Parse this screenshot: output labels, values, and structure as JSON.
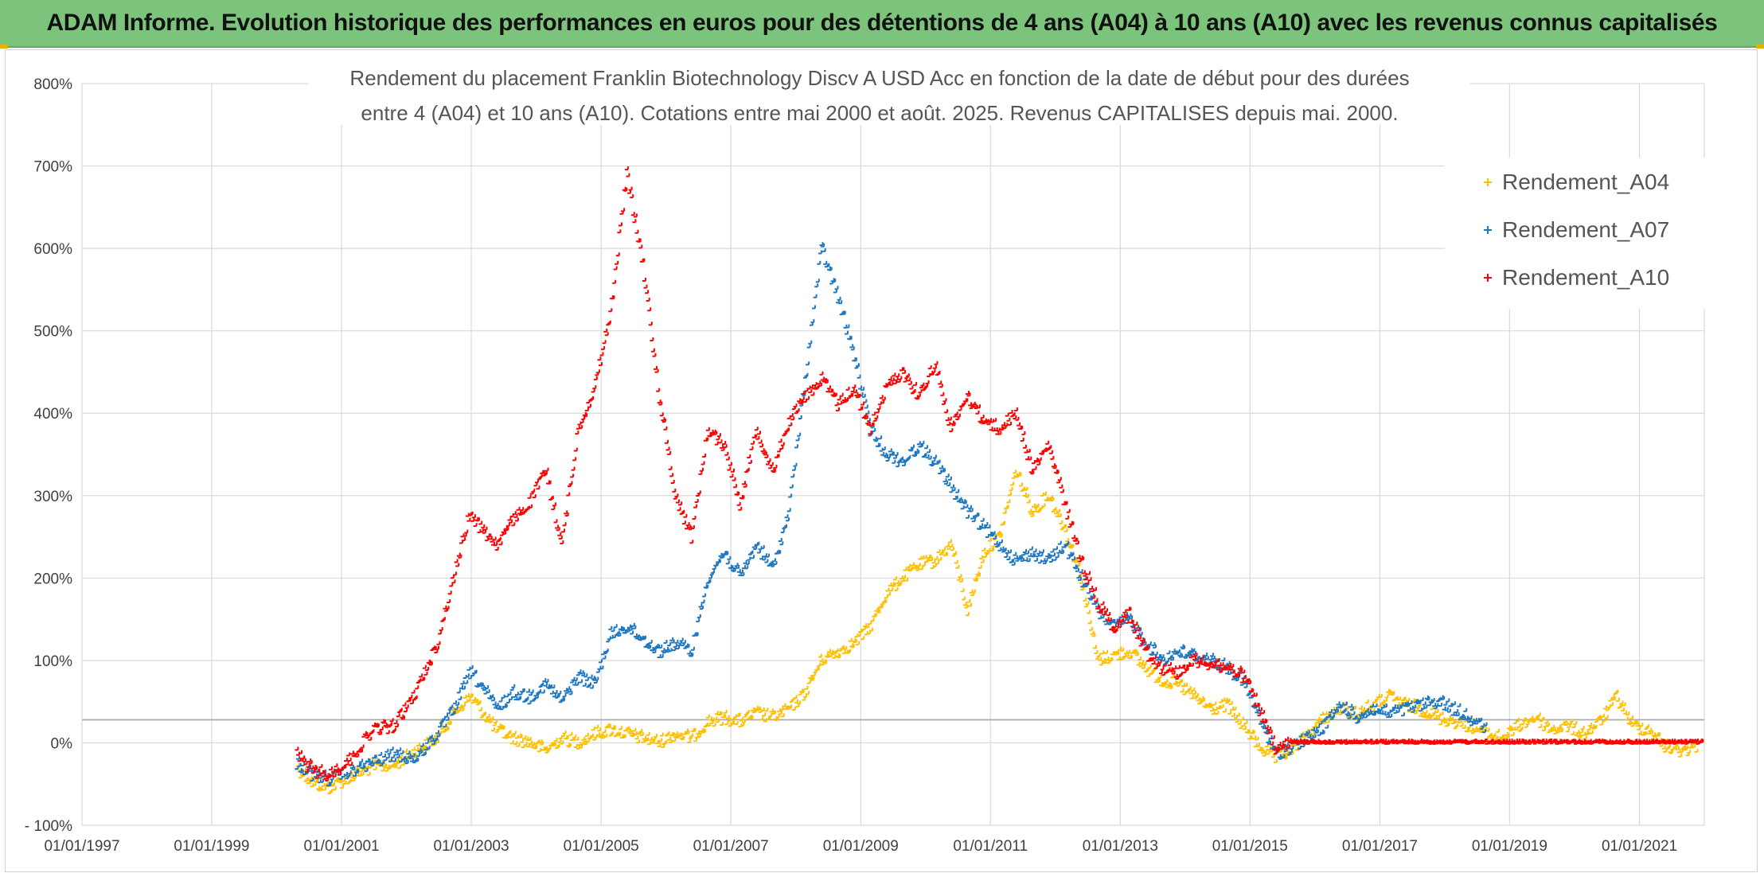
{
  "banner": {
    "title": "ADAM Informe. Evolution historique des performances en euros pour des détentions de 4 ans (A04) à 10 ans (A10) avec les revenus connus capitalisés"
  },
  "colors": {
    "banner_bg": "#7cc47c",
    "A04": "#ffc000",
    "A07": "#1f78c1",
    "A10": "#ff0000",
    "grid": "#d9d9d9"
  },
  "chart_data": {
    "type": "scatter",
    "title_line1": "Rendement du placement Franklin Biotechnology Discv A USD Acc en fonction de la date de début pour des durées",
    "title_line2": "entre 4 (A04) et 10 ans (A10). Cotations entre mai 2000 et août. 2025. Revenus CAPITALISES depuis mai. 2000.",
    "xlabel": "",
    "ylabel": "",
    "x_ticks": [
      "01/01/1997",
      "01/01/1999",
      "01/01/2001",
      "01/01/2003",
      "01/01/2005",
      "01/01/2007",
      "01/01/2009",
      "01/01/2011",
      "01/01/2013",
      "01/01/2015",
      "01/01/2017",
      "01/01/2019",
      "01/01/2021"
    ],
    "x_range": [
      "1997-01-01",
      "2022-01-01"
    ],
    "y_ticks": [
      "- 100%",
      "0%",
      "100%",
      "200%",
      "300%",
      "400%",
      "500%",
      "600%",
      "700%",
      "800%"
    ],
    "ylim": [
      -100,
      800
    ],
    "reference_line": 28,
    "grid": true,
    "legend_position": "top-right",
    "marker": "+",
    "series": [
      {
        "name": "Rendement_A04",
        "color": "#ffc000",
        "points": [
          [
            "2000-05-01",
            -30
          ],
          [
            "2000-08-01",
            -50
          ],
          [
            "2000-11-01",
            -55
          ],
          [
            "2001-03-01",
            -42
          ],
          [
            "2001-07-01",
            -30
          ],
          [
            "2001-11-01",
            -28
          ],
          [
            "2002-03-01",
            -10
          ],
          [
            "2002-07-01",
            5
          ],
          [
            "2002-10-01",
            35
          ],
          [
            "2003-01-01",
            55
          ],
          [
            "2003-03-01",
            40
          ],
          [
            "2003-06-01",
            15
          ],
          [
            "2003-09-01",
            5
          ],
          [
            "2003-12-01",
            0
          ],
          [
            "2004-03-01",
            -10
          ],
          [
            "2004-06-01",
            5
          ],
          [
            "2004-09-01",
            0
          ],
          [
            "2004-12-01",
            10
          ],
          [
            "2005-03-01",
            15
          ],
          [
            "2005-06-01",
            10
          ],
          [
            "2005-09-01",
            5
          ],
          [
            "2005-12-01",
            0
          ],
          [
            "2006-03-01",
            10
          ],
          [
            "2006-06-01",
            5
          ],
          [
            "2006-09-01",
            25
          ],
          [
            "2006-12-01",
            30
          ],
          [
            "2007-03-01",
            25
          ],
          [
            "2007-06-01",
            35
          ],
          [
            "2007-09-01",
            30
          ],
          [
            "2007-12-01",
            40
          ],
          [
            "2008-03-01",
            60
          ],
          [
            "2008-06-01",
            100
          ],
          [
            "2008-09-01",
            110
          ],
          [
            "2008-12-01",
            120
          ],
          [
            "2009-03-01",
            140
          ],
          [
            "2009-06-01",
            180
          ],
          [
            "2009-09-01",
            200
          ],
          [
            "2009-12-01",
            215
          ],
          [
            "2010-03-01",
            220
          ],
          [
            "2010-06-01",
            240
          ],
          [
            "2010-09-01",
            160
          ],
          [
            "2010-12-01",
            230
          ],
          [
            "2011-03-01",
            250
          ],
          [
            "2011-06-01",
            330
          ],
          [
            "2011-09-01",
            280
          ],
          [
            "2011-12-01",
            300
          ],
          [
            "2012-03-01",
            260
          ],
          [
            "2012-06-01",
            200
          ],
          [
            "2012-09-01",
            100
          ],
          [
            "2012-12-01",
            105
          ],
          [
            "2013-03-01",
            110
          ],
          [
            "2013-06-01",
            90
          ],
          [
            "2013-09-01",
            75
          ],
          [
            "2013-12-01",
            70
          ],
          [
            "2014-03-01",
            55
          ],
          [
            "2014-06-01",
            40
          ],
          [
            "2014-09-01",
            45
          ],
          [
            "2014-12-01",
            20
          ],
          [
            "2015-03-01",
            -5
          ],
          [
            "2015-06-01",
            -20
          ],
          [
            "2015-09-01",
            -10
          ],
          [
            "2015-12-01",
            10
          ],
          [
            "2016-03-01",
            30
          ],
          [
            "2016-06-01",
            40
          ],
          [
            "2016-09-01",
            35
          ],
          [
            "2016-12-01",
            45
          ],
          [
            "2017-03-01",
            55
          ],
          [
            "2017-06-01",
            45
          ],
          [
            "2017-09-01",
            40
          ],
          [
            "2017-12-01",
            30
          ],
          [
            "2018-03-01",
            25
          ],
          [
            "2018-06-01",
            20
          ],
          [
            "2018-09-01",
            10
          ],
          [
            "2018-12-01",
            5
          ],
          [
            "2019-03-01",
            20
          ],
          [
            "2019-06-01",
            30
          ],
          [
            "2019-09-01",
            15
          ],
          [
            "2019-12-01",
            20
          ],
          [
            "2020-03-01",
            10
          ],
          [
            "2020-06-01",
            25
          ],
          [
            "2020-09-01",
            55
          ],
          [
            "2020-12-01",
            20
          ],
          [
            "2021-03-01",
            15
          ],
          [
            "2021-06-01",
            -5
          ],
          [
            "2021-09-01",
            -10
          ],
          [
            "2021-12-01",
            -5
          ]
        ]
      },
      {
        "name": "Rendement_A07",
        "color": "#1f78c1",
        "points": [
          [
            "2000-05-01",
            -25
          ],
          [
            "2000-08-01",
            -40
          ],
          [
            "2000-11-01",
            -45
          ],
          [
            "2001-03-01",
            -35
          ],
          [
            "2001-07-01",
            -25
          ],
          [
            "2001-11-01",
            -15
          ],
          [
            "2002-03-01",
            -20
          ],
          [
            "2002-07-01",
            10
          ],
          [
            "2002-10-01",
            40
          ],
          [
            "2003-01-01",
            85
          ],
          [
            "2003-03-01",
            70
          ],
          [
            "2003-06-01",
            40
          ],
          [
            "2003-09-01",
            60
          ],
          [
            "2003-12-01",
            55
          ],
          [
            "2004-03-01",
            70
          ],
          [
            "2004-06-01",
            50
          ],
          [
            "2004-09-01",
            80
          ],
          [
            "2004-12-01",
            70
          ],
          [
            "2005-03-01",
            130
          ],
          [
            "2005-06-01",
            140
          ],
          [
            "2005-09-01",
            125
          ],
          [
            "2005-12-01",
            110
          ],
          [
            "2006-03-01",
            120
          ],
          [
            "2006-06-01",
            110
          ],
          [
            "2006-09-01",
            200
          ],
          [
            "2006-12-01",
            230
          ],
          [
            "2007-03-01",
            200
          ],
          [
            "2007-06-01",
            240
          ],
          [
            "2007-09-01",
            210
          ],
          [
            "2007-12-01",
            280
          ],
          [
            "2008-03-01",
            440
          ],
          [
            "2008-06-01",
            600
          ],
          [
            "2008-09-01",
            540
          ],
          [
            "2008-12-01",
            470
          ],
          [
            "2009-03-01",
            380
          ],
          [
            "2009-06-01",
            350
          ],
          [
            "2009-09-01",
            340
          ],
          [
            "2009-12-01",
            360
          ],
          [
            "2010-03-01",
            340
          ],
          [
            "2010-06-01",
            310
          ],
          [
            "2010-09-01",
            280
          ],
          [
            "2010-12-01",
            260
          ],
          [
            "2011-03-01",
            240
          ],
          [
            "2011-06-01",
            220
          ],
          [
            "2011-09-01",
            230
          ],
          [
            "2011-12-01",
            220
          ],
          [
            "2012-03-01",
            240
          ],
          [
            "2012-06-01",
            200
          ],
          [
            "2012-09-01",
            160
          ],
          [
            "2012-12-01",
            140
          ],
          [
            "2013-03-01",
            150
          ],
          [
            "2013-06-01",
            120
          ],
          [
            "2013-09-01",
            100
          ],
          [
            "2013-12-01",
            110
          ],
          [
            "2014-03-01",
            105
          ],
          [
            "2014-06-01",
            100
          ],
          [
            "2014-09-01",
            90
          ],
          [
            "2014-12-01",
            75
          ],
          [
            "2015-03-01",
            30
          ],
          [
            "2015-06-01",
            -15
          ],
          [
            "2015-09-01",
            -5
          ],
          [
            "2015-12-01",
            5
          ],
          [
            "2016-03-01",
            20
          ],
          [
            "2016-06-01",
            45
          ],
          [
            "2016-09-01",
            30
          ],
          [
            "2016-12-01",
            40
          ],
          [
            "2017-03-01",
            35
          ],
          [
            "2017-06-01",
            40
          ],
          [
            "2017-09-01",
            45
          ],
          [
            "2017-12-01",
            50
          ],
          [
            "2018-03-01",
            40
          ],
          [
            "2018-06-01",
            30
          ],
          [
            "2018-09-01",
            15
          ]
        ]
      },
      {
        "name": "Rendement_A10",
        "color": "#ff0000",
        "points": [
          [
            "2000-05-01",
            -15
          ],
          [
            "2000-08-01",
            -35
          ],
          [
            "2000-11-01",
            -40
          ],
          [
            "2001-03-01",
            -20
          ],
          [
            "2001-07-01",
            15
          ],
          [
            "2001-11-01",
            20
          ],
          [
            "2002-03-01",
            60
          ],
          [
            "2002-07-01",
            120
          ],
          [
            "2002-10-01",
            200
          ],
          [
            "2003-01-01",
            280
          ],
          [
            "2003-03-01",
            260
          ],
          [
            "2003-06-01",
            240
          ],
          [
            "2003-09-01",
            270
          ],
          [
            "2003-12-01",
            290
          ],
          [
            "2004-03-01",
            330
          ],
          [
            "2004-06-01",
            240
          ],
          [
            "2004-09-01",
            380
          ],
          [
            "2004-12-01",
            430
          ],
          [
            "2005-03-01",
            520
          ],
          [
            "2005-06-01",
            690
          ],
          [
            "2005-09-01",
            580
          ],
          [
            "2005-12-01",
            420
          ],
          [
            "2006-03-01",
            300
          ],
          [
            "2006-06-01",
            250
          ],
          [
            "2006-09-01",
            380
          ],
          [
            "2006-12-01",
            360
          ],
          [
            "2007-03-01",
            290
          ],
          [
            "2007-06-01",
            380
          ],
          [
            "2007-09-01",
            330
          ],
          [
            "2007-12-01",
            390
          ],
          [
            "2008-03-01",
            420
          ],
          [
            "2008-06-01",
            440
          ],
          [
            "2008-09-01",
            410
          ],
          [
            "2008-12-01",
            430
          ],
          [
            "2009-03-01",
            380
          ],
          [
            "2009-06-01",
            430
          ],
          [
            "2009-09-01",
            450
          ],
          [
            "2009-12-01",
            420
          ],
          [
            "2010-03-01",
            460
          ],
          [
            "2010-06-01",
            380
          ],
          [
            "2010-09-01",
            420
          ],
          [
            "2010-12-01",
            390
          ],
          [
            "2011-03-01",
            380
          ],
          [
            "2011-06-01",
            400
          ],
          [
            "2011-09-01",
            330
          ],
          [
            "2011-12-01",
            360
          ],
          [
            "2012-03-01",
            290
          ],
          [
            "2012-06-01",
            220
          ],
          [
            "2012-09-01",
            170
          ],
          [
            "2012-12-01",
            140
          ],
          [
            "2013-03-01",
            155
          ],
          [
            "2013-06-01",
            110
          ],
          [
            "2013-09-01",
            90
          ],
          [
            "2013-12-01",
            85
          ],
          [
            "2014-03-01",
            100
          ],
          [
            "2014-06-01",
            95
          ],
          [
            "2014-09-01",
            90
          ],
          [
            "2014-12-01",
            80
          ],
          [
            "2015-03-01",
            40
          ],
          [
            "2015-06-01",
            -10
          ],
          [
            "2015-09-01",
            0
          ],
          [
            "2022-01-01",
            0
          ]
        ]
      }
    ]
  }
}
